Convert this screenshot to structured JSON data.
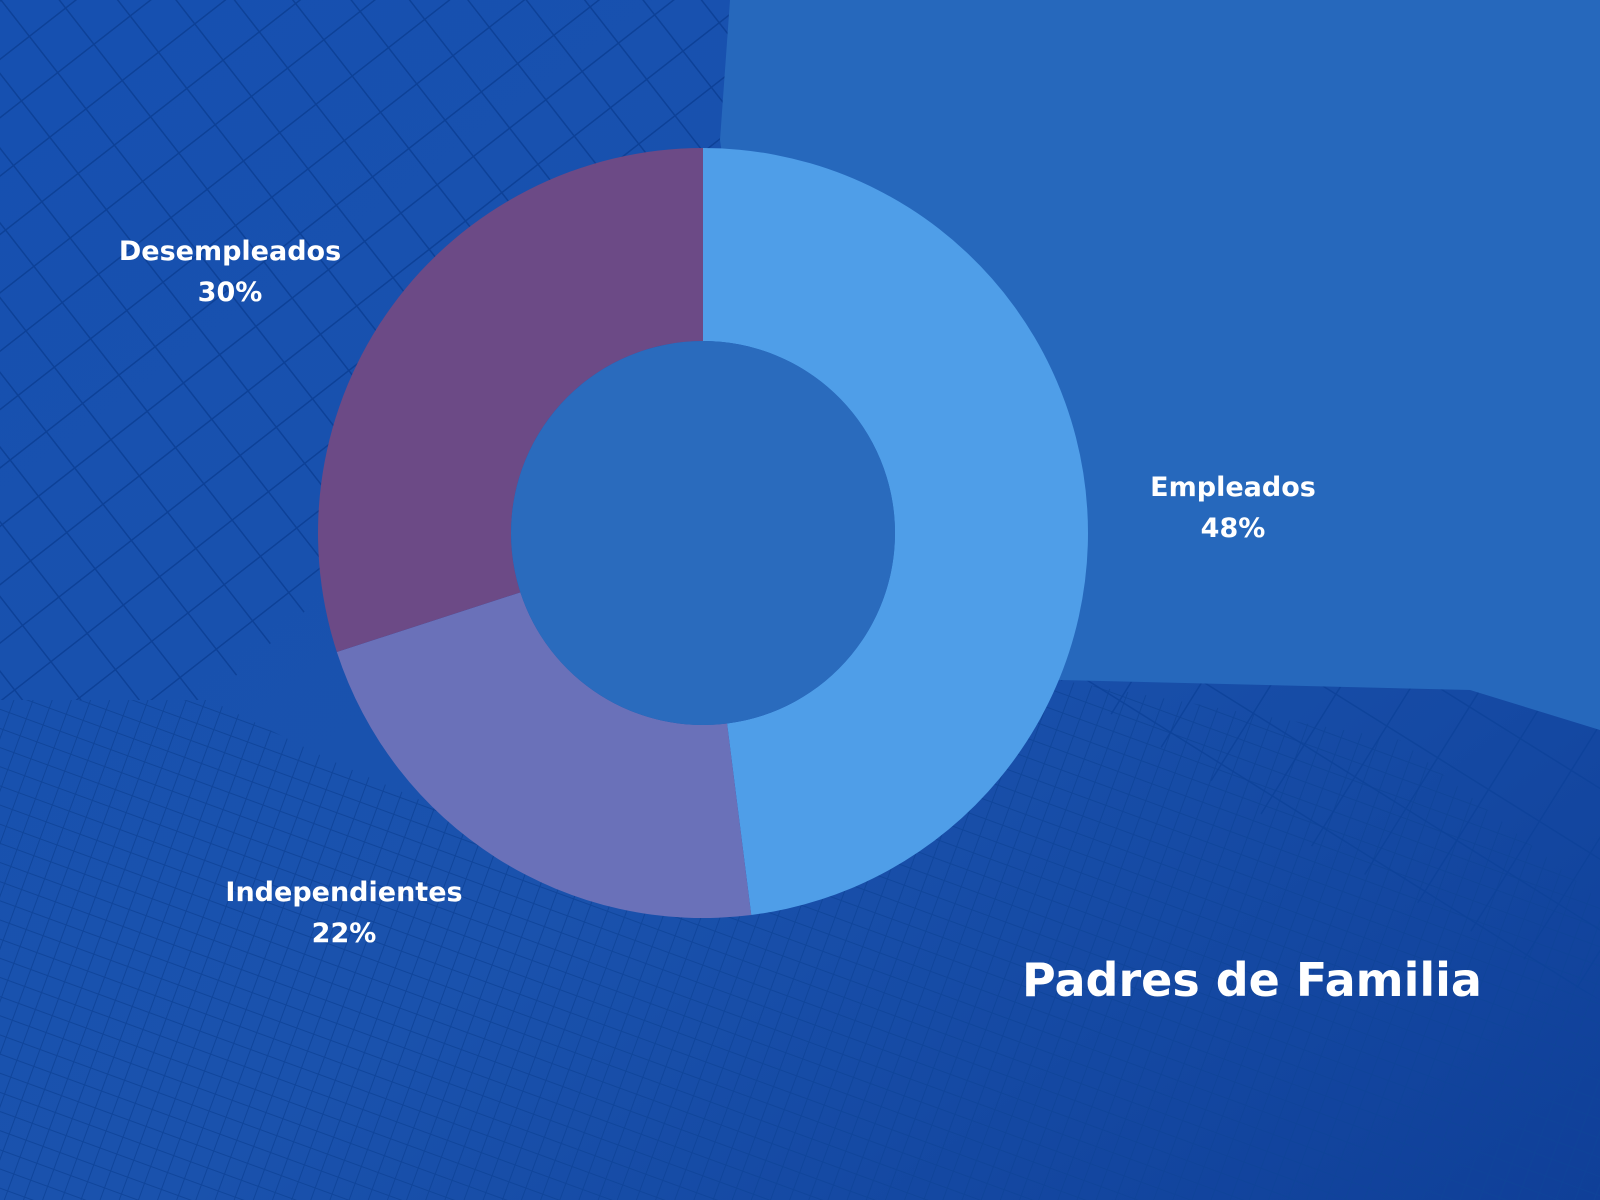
{
  "chart_data": {
    "type": "pie",
    "variant": "donut",
    "title": "Padres de Familia",
    "slices": [
      {
        "label": "Empleados",
        "value": 48,
        "display": "48%",
        "color": "#4f9ee8"
      },
      {
        "label": "Independientes",
        "value": 22,
        "display": "22%",
        "color": "#6a71b9"
      },
      {
        "label": "Desempleados",
        "value": 30,
        "display": "30%",
        "color": "#6c4a86"
      }
    ]
  },
  "colors": {
    "background": "#1a4fa8",
    "hole": "#2a6bbd",
    "text": "#ffffff"
  }
}
